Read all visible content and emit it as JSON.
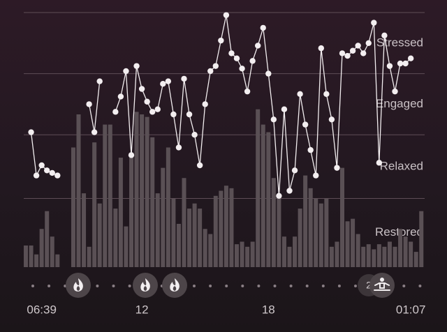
{
  "chart_data": {
    "type": "bar",
    "categories": [
      null,
      null,
      null,
      "06:39",
      null,
      null,
      null,
      null,
      null,
      null,
      null,
      null,
      null,
      null,
      null,
      null,
      null,
      null,
      null,
      null,
      null,
      null,
      "12",
      null,
      null,
      null,
      null,
      null,
      null,
      null,
      null,
      null,
      null,
      null,
      null,
      null,
      null,
      null,
      null,
      null,
      null,
      null,
      null,
      null,
      null,
      null,
      "18",
      null,
      null,
      null,
      null,
      null,
      null,
      null,
      null,
      null,
      null,
      null,
      null,
      null,
      null,
      null,
      null,
      null,
      null,
      null,
      null,
      null,
      null,
      null,
      null,
      null,
      null,
      "01:07",
      null,
      null
    ],
    "series": [
      {
        "type": "bar",
        "color": "#5a5055",
        "values": [
          8.5,
          8.5,
          5,
          15,
          22,
          12,
          5,
          0,
          0,
          47,
          60,
          29,
          8,
          49,
          25,
          56,
          56,
          23,
          43,
          16,
          45,
          61,
          60,
          59,
          51,
          29,
          39,
          47,
          27,
          17,
          35,
          23,
          25,
          23,
          15,
          13,
          28,
          30,
          32,
          31,
          9,
          10,
          8,
          10,
          62,
          56,
          53,
          35,
          27,
          12,
          8,
          12,
          23,
          36,
          31,
          27,
          25,
          27,
          8,
          10,
          39,
          18,
          19,
          13,
          8,
          9,
          7,
          9,
          8,
          10,
          8,
          15,
          12,
          10,
          6,
          22
        ]
      },
      {
        "type": "line",
        "color": "#f3eef0",
        "values": [
          null,
          53,
          36,
          40,
          38,
          37,
          36,
          null,
          null,
          null,
          null,
          null,
          64,
          53,
          73,
          null,
          null,
          61,
          67,
          77,
          44,
          79,
          70,
          65,
          61,
          62,
          72,
          73,
          60,
          47,
          74,
          60,
          52,
          40,
          64,
          77,
          79,
          89,
          99,
          84,
          82,
          78,
          69,
          81,
          87,
          94,
          76,
          58,
          28,
          62,
          30,
          38,
          68,
          56,
          46,
          36,
          86,
          68,
          58,
          39,
          84,
          83,
          85,
          87,
          84,
          88,
          96,
          41,
          91,
          79,
          69,
          80,
          80,
          82,
          null,
          null
        ]
      }
    ],
    "ylim": [
      0,
      100
    ],
    "yticks": [
      {
        "value": 100,
        "label": "Stressed"
      },
      {
        "value": 76,
        "label": "Engaged"
      },
      {
        "value": 52,
        "label": "Relaxed"
      },
      {
        "value": 27,
        "label": "Restored"
      }
    ],
    "grid": true,
    "annotations": [
      "2"
    ]
  }
}
